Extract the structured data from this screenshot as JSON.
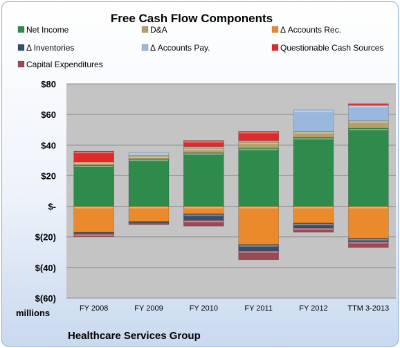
{
  "chart_data": {
    "type": "bar",
    "stacked": true,
    "title": "Free Cash Flow Components",
    "units_label": "millions",
    "source_label": "Healthcare Services Group",
    "categories": [
      "FY 2008",
      "FY 2009",
      "FY 2010",
      "FY 2011",
      "FY 2012",
      "TTM 3-2013"
    ],
    "ylim": [
      -60,
      80
    ],
    "yticks": [
      80,
      60,
      40,
      20,
      0,
      -20,
      -40,
      -60
    ],
    "ytick_labels": [
      "$80",
      "$60",
      "$40",
      "$20",
      "$-",
      "$(20)",
      "$(40)",
      "$(60)"
    ],
    "grid": true,
    "legend_position": "top",
    "series": [
      {
        "name": "Net Income",
        "color": "#2e8b4c",
        "values": [
          27,
          31,
          35,
          38,
          45,
          51
        ]
      },
      {
        "name": "D&A",
        "color": "#b5a06a",
        "values": [
          2,
          2,
          3,
          4,
          4,
          5
        ]
      },
      {
        "name": "Δ Accounts Rec.",
        "color": "#ea8a2a",
        "values": [
          -17,
          -10,
          -5,
          -25,
          -11,
          -21
        ]
      },
      {
        "name": "Δ Inventories",
        "color": "#33506f",
        "values": [
          -1,
          -1,
          -4,
          -4,
          -3,
          -2
        ]
      },
      {
        "name": "Δ Accounts Pay.",
        "color": "#9ab8dd",
        "values": [
          0,
          2,
          1,
          1,
          14,
          10
        ]
      },
      {
        "name": "Questionable Cash Sources",
        "color": "#e02a2a",
        "values": [
          7,
          0,
          4,
          6,
          0,
          1
        ]
      },
      {
        "name": "Capital Expenditures",
        "color": "#9b4a55",
        "values": [
          -2,
          -1,
          -4,
          -6,
          -3,
          -4
        ]
      }
    ]
  }
}
